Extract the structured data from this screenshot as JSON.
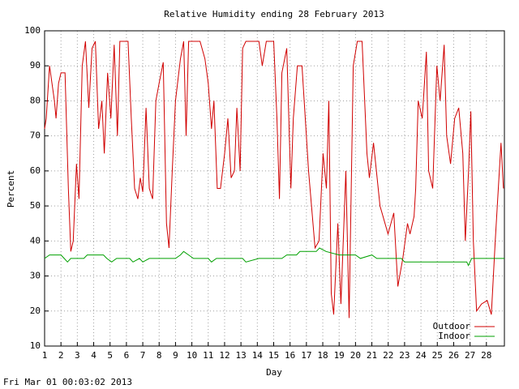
{
  "chart_data": {
    "type": "line",
    "title": "Relative Humidity ending 28 February 2013",
    "xlabel": "Day",
    "ylabel": "Percent",
    "xlim": [
      1,
      29.1
    ],
    "ylim": [
      10,
      100
    ],
    "xticks": [
      1,
      2,
      3,
      4,
      5,
      6,
      7,
      8,
      9,
      10,
      11,
      12,
      13,
      14,
      15,
      16,
      17,
      18,
      19,
      20,
      21,
      22,
      23,
      24,
      25,
      26,
      27,
      28
    ],
    "yticks": [
      10,
      20,
      30,
      40,
      50,
      60,
      70,
      80,
      90,
      100
    ],
    "grid": true,
    "legend": "lower right",
    "series": [
      {
        "name": "Outdoor",
        "color": "#d00000",
        "x": [
          1.0,
          1.1,
          1.3,
          1.45,
          1.6,
          1.7,
          1.85,
          2.0,
          2.25,
          2.45,
          2.6,
          2.75,
          2.95,
          3.1,
          3.3,
          3.5,
          3.7,
          3.9,
          4.1,
          4.3,
          4.5,
          4.65,
          4.85,
          5.05,
          5.25,
          5.45,
          5.6,
          6.1,
          6.3,
          6.5,
          6.7,
          6.85,
          7.0,
          7.2,
          7.4,
          7.6,
          7.8,
          8.0,
          8.25,
          8.45,
          8.6,
          8.8,
          9.0,
          9.3,
          9.5,
          9.65,
          9.8,
          10.5,
          10.8,
          11.0,
          11.2,
          11.35,
          11.55,
          11.75,
          12.0,
          12.2,
          12.4,
          12.6,
          12.75,
          12.95,
          13.1,
          13.3,
          14.1,
          14.3,
          14.55,
          15.0,
          15.2,
          15.35,
          15.5,
          15.8,
          16.05,
          16.2,
          16.45,
          16.73,
          17.13,
          17.53,
          17.77,
          18.02,
          18.22,
          18.37,
          18.52,
          18.67,
          18.92,
          19.11,
          19.41,
          19.61,
          19.86,
          20.11,
          20.4,
          20.7,
          20.85,
          21.1,
          21.5,
          21.99,
          22.34,
          22.59,
          22.89,
          23.18,
          23.33,
          23.58,
          23.68,
          23.83,
          24.08,
          24.33,
          24.47,
          24.72,
          24.97,
          25.17,
          25.42,
          25.57,
          25.81,
          26.06,
          26.31,
          26.56,
          26.71,
          26.91,
          27.05,
          27.2,
          27.4,
          27.7,
          28.05,
          28.3,
          28.54,
          28.89,
          29.04
        ],
        "values": [
          72,
          75,
          90,
          85,
          80,
          75,
          85,
          88,
          88,
          55,
          37,
          40,
          62,
          52,
          90,
          97,
          78,
          95,
          97,
          72,
          80,
          65,
          88,
          75,
          96,
          70,
          97,
          97,
          75,
          55,
          52,
          58,
          54,
          78,
          55,
          52,
          80,
          85,
          91,
          45,
          38,
          60,
          80,
          92,
          97,
          70,
          97,
          97,
          92,
          85,
          72,
          80,
          55,
          55,
          65,
          75,
          58,
          60,
          78,
          60,
          95,
          97,
          97,
          90,
          97,
          97,
          75,
          52,
          88,
          95,
          55,
          75,
          90,
          90,
          60,
          38,
          40,
          65,
          55,
          80,
          25,
          19,
          45,
          22,
          60,
          18,
          90,
          97,
          97,
          65,
          58,
          68,
          50,
          42,
          48,
          27,
          35,
          45,
          42,
          47,
          55,
          80,
          75,
          94,
          60,
          55,
          90,
          80,
          96,
          70,
          62,
          75,
          78,
          65,
          40,
          60,
          77,
          40,
          20,
          22,
          23,
          19,
          40,
          68,
          55
        ]
      },
      {
        "name": "Indoor",
        "color": "#00a000",
        "x": [
          1,
          1.3,
          2,
          2.2,
          2.4,
          2.6,
          3.4,
          3.6,
          4.6,
          4.8,
          5.1,
          5.4,
          6.2,
          6.4,
          6.8,
          7,
          7.4,
          9,
          9.3,
          9.5,
          9.8,
          10.1,
          11,
          11.2,
          11.5,
          13.1,
          13.3,
          14.1,
          15.5,
          15.8,
          16.4,
          16.6,
          17.6,
          17.8,
          18.2,
          19,
          20,
          20.3,
          21,
          21.3,
          22.8,
          23,
          26.8,
          26.9,
          27.1,
          29.1
        ],
        "values": [
          35,
          36,
          36,
          35,
          34,
          35,
          35,
          36,
          36,
          35,
          34,
          35,
          35,
          34,
          35,
          34,
          35,
          35,
          36,
          37,
          36,
          35,
          35,
          34,
          35,
          35,
          34,
          35,
          35,
          36,
          36,
          37,
          37,
          38,
          37,
          36,
          36,
          35,
          36,
          35,
          35,
          34,
          34,
          33,
          35,
          35
        ]
      }
    ]
  },
  "timestamp": "Fri Mar 01 00:03:02 2013"
}
